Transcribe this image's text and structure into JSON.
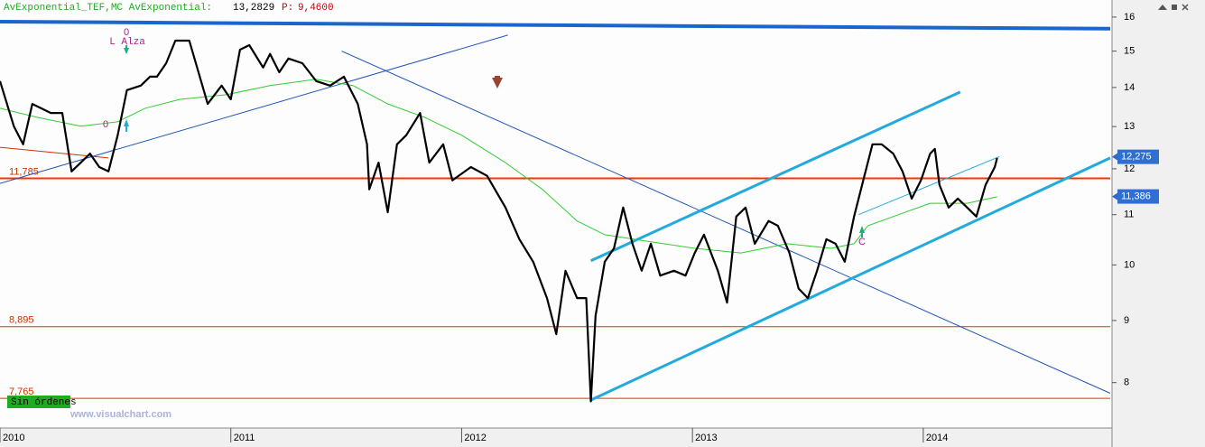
{
  "chart_data": {
    "type": "line",
    "indicator": {
      "name": "AvExponential_TEF,MC AvExponential:",
      "value": "13,2829",
      "price_label": "P:",
      "price": "9,4600"
    },
    "log_y": true,
    "xlim": [
      2010,
      2014.81
    ],
    "xticks": [
      2010,
      2011,
      2012,
      2013,
      2014
    ],
    "ylim": [
      7.39,
      16.19
    ],
    "yticks": [
      8,
      9,
      10,
      11,
      12,
      13,
      14,
      15,
      16
    ],
    "series": [
      {
        "color": "#000000",
        "width": 2.2,
        "x": [
          2010.0,
          2010.06,
          2010.1,
          2010.14,
          2010.22,
          2010.27,
          2010.31,
          2010.35,
          2010.39,
          2010.43,
          2010.47,
          2010.51,
          2010.55,
          2010.61,
          2010.65,
          2010.68,
          2010.72,
          2010.76,
          2010.82,
          2010.86,
          2010.9,
          2010.96,
          2011.0,
          2011.04,
          2011.08,
          2011.14,
          2011.17,
          2011.21,
          2011.25,
          2011.31,
          2011.37,
          2011.43,
          2011.49,
          2011.55,
          2011.59,
          2011.6,
          2011.64,
          2011.68,
          2011.72,
          2011.76,
          2011.82,
          2011.86,
          2011.92,
          2011.96,
          2012.04,
          2012.11,
          2012.19,
          2012.25,
          2012.31,
          2012.37,
          2012.41,
          2012.45,
          2012.5,
          2012.54,
          2012.56,
          2012.58,
          2012.62,
          2012.66,
          2012.7,
          2012.74,
          2012.78,
          2012.82,
          2012.86,
          2012.92,
          2012.97,
          2013.01,
          2013.05,
          2013.11,
          2013.15,
          2013.19,
          2013.23,
          2013.27,
          2013.33,
          2013.37,
          2013.42,
          2013.46,
          2013.5,
          2013.54,
          2013.58,
          2013.62,
          2013.66,
          2013.7,
          2013.74,
          2013.78,
          2013.82,
          2013.87,
          2013.91,
          2013.95,
          2013.99,
          2014.03,
          2014.05,
          2014.07,
          2014.11,
          2014.15,
          2014.19,
          2014.23,
          2014.27,
          2014.31,
          2014.32
        ],
        "values": [
          14.17,
          13.01,
          12.57,
          13.57,
          13.34,
          13.34,
          11.94,
          12.14,
          12.35,
          12.04,
          11.94,
          12.79,
          13.93,
          14.05,
          14.29,
          14.29,
          14.66,
          15.3,
          15.3,
          14.41,
          13.57,
          14.05,
          13.69,
          15.04,
          15.17,
          14.54,
          14.92,
          14.41,
          14.79,
          14.66,
          14.17,
          14.05,
          14.29,
          13.57,
          12.57,
          11.54,
          12.14,
          11.05,
          12.57,
          12.79,
          13.34,
          12.14,
          12.57,
          11.74,
          12.04,
          11.84,
          11.15,
          10.5,
          10.06,
          9.39,
          8.77,
          9.89,
          9.39,
          9.39,
          7.72,
          9.08,
          10.06,
          10.32,
          11.15,
          10.41,
          9.89,
          10.41,
          9.8,
          9.89,
          9.8,
          10.23,
          10.59,
          9.89,
          9.31,
          10.96,
          11.15,
          10.41,
          10.87,
          10.77,
          10.23,
          9.56,
          9.39,
          9.89,
          10.5,
          10.41,
          10.06,
          10.96,
          11.74,
          12.57,
          12.57,
          12.35,
          11.94,
          11.34,
          11.74,
          12.35,
          12.46,
          11.64,
          11.15,
          11.34,
          11.15,
          10.96,
          11.64,
          12.04,
          12.25
        ]
      },
      {
        "color": "#33cc33",
        "width": 1,
        "x": [
          2010.0,
          2010.16,
          2010.35,
          2010.51,
          2010.63,
          2010.78,
          2010.98,
          2011.17,
          2011.37,
          2011.53,
          2011.68,
          2011.84,
          2012.0,
          2012.19,
          2012.35,
          2012.5,
          2012.62,
          2012.82,
          2013.01,
          2013.21,
          2013.41,
          2013.6,
          2013.7,
          2013.76,
          2013.87,
          2014.03,
          2014.19,
          2014.32
        ],
        "values": [
          13.46,
          13.23,
          13.01,
          13.12,
          13.46,
          13.69,
          13.81,
          14.05,
          14.22,
          14.05,
          13.57,
          13.23,
          12.79,
          12.14,
          11.54,
          10.87,
          10.59,
          10.45,
          10.32,
          10.23,
          10.41,
          10.32,
          10.41,
          10.77,
          10.96,
          11.24,
          11.24,
          11.38
        ]
      }
    ],
    "trendlines": [
      {
        "color": "#1a66cc",
        "width": 4,
        "x": [
          2010.0,
          2014.81
        ],
        "values": [
          15.86,
          15.65
        ]
      },
      {
        "color": "#2255bb",
        "width": 1,
        "x": [
          2010.0,
          2012.2
        ],
        "values": [
          11.67,
          15.46
        ]
      },
      {
        "color": "#2255bb",
        "width": 1,
        "x": [
          2011.48,
          2014.81
        ],
        "values": [
          15.0,
          7.84
        ]
      },
      {
        "color": "#22aadd",
        "width": 3,
        "x": [
          2012.56,
          2014.81
        ],
        "values": [
          7.74,
          12.25
        ]
      },
      {
        "color": "#22aadd",
        "width": 3,
        "x": [
          2012.56,
          2014.16
        ],
        "values": [
          10.08,
          13.88
        ]
      },
      {
        "color": "#22aadd",
        "width": 1,
        "x": [
          2013.72,
          2014.33
        ],
        "values": [
          11.0,
          12.28
        ]
      },
      {
        "color": "#cc3300",
        "width": 1,
        "x": [
          2010.0,
          2010.47
        ],
        "values": [
          12.5,
          12.25
        ]
      }
    ],
    "levels": [
      {
        "value": 11.785,
        "label": "11,785",
        "color": "#ff3300",
        "width": 2
      },
      {
        "value": 8.895,
        "label": "8,895",
        "color": "#dd3300",
        "width": 1
      },
      {
        "value": 7.765,
        "label": "7,765",
        "color": "#dd3300",
        "width": 1
      }
    ],
    "last_labels": [
      {
        "value": 12.275,
        "label": "12,275"
      },
      {
        "value": 11.386,
        "label": "11,386"
      }
    ],
    "annotations": [
      "0",
      "L Alza",
      "0",
      "C"
    ],
    "status": "Sin órdenes",
    "watermark": "www.visualchart.com"
  }
}
